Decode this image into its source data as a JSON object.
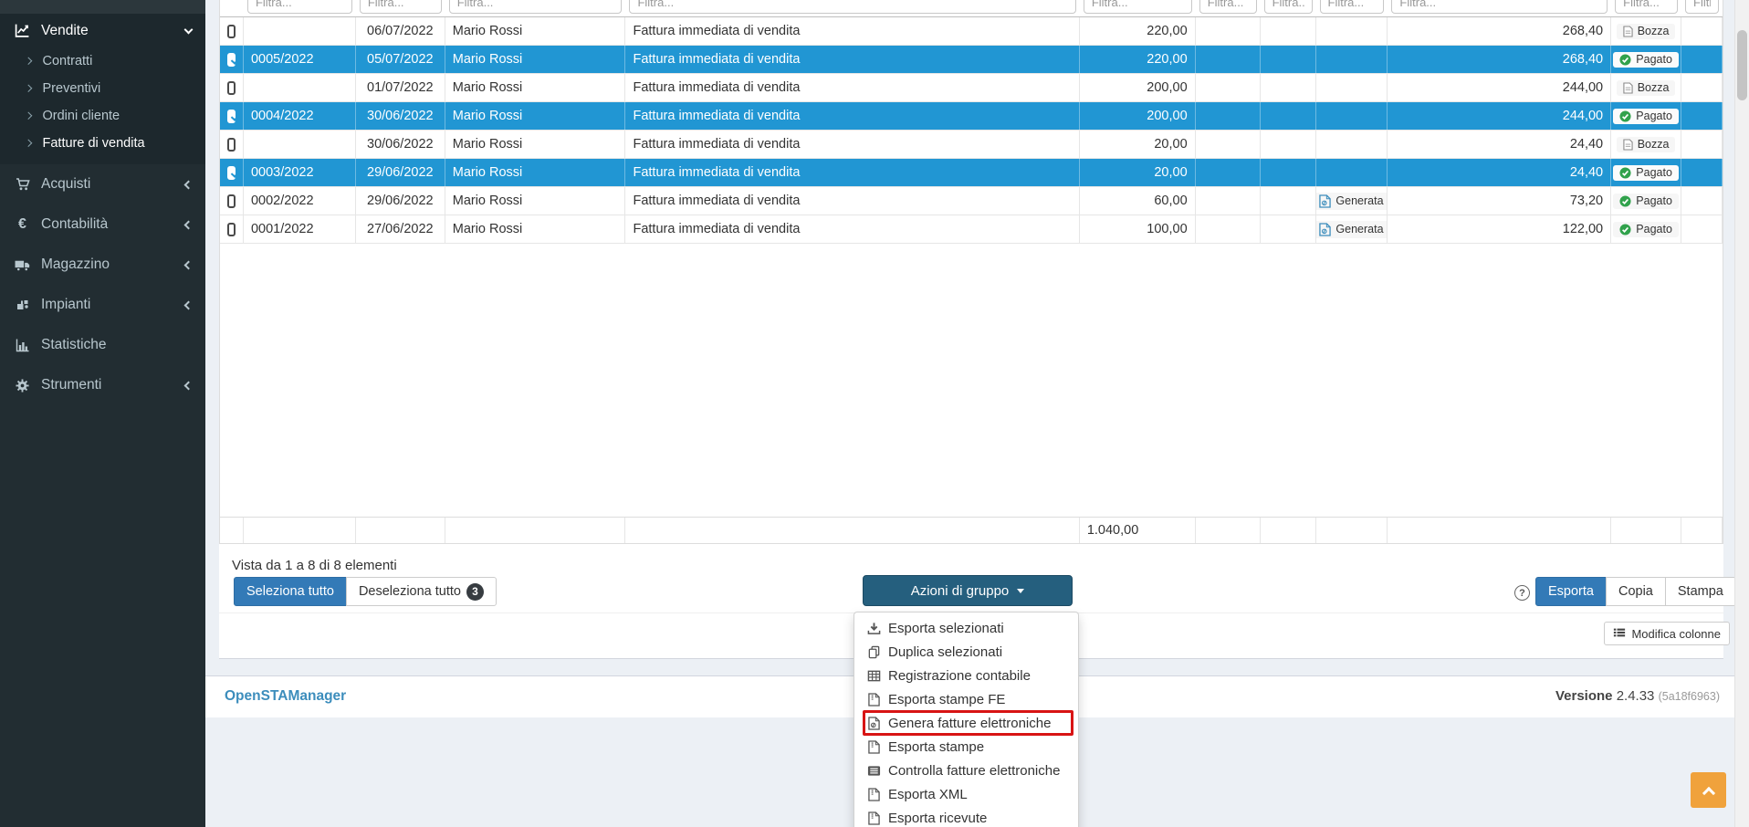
{
  "colors": {
    "selected_row": "#2196d3",
    "primary_button": "#337ab7",
    "group_actions_button": "#255f7e",
    "highlight_box": "#d81414",
    "scroll_top_button": "#f0a23c",
    "brand_link": "#3c8dbc",
    "status_paid_green": "#31a24c",
    "generated_blue": "#3c8dbc"
  },
  "sidebar": {
    "sections": [
      {
        "label": "Vendite",
        "icon": "line-chart-icon",
        "open": true,
        "children": [
          {
            "label": "Contratti",
            "active": false
          },
          {
            "label": "Preventivi",
            "active": false
          },
          {
            "label": "Ordini cliente",
            "active": false
          },
          {
            "label": "Fatture di vendita",
            "active": true
          }
        ]
      },
      {
        "label": "Acquisti",
        "icon": "cart-icon",
        "chevron": "left"
      },
      {
        "label": "Contabilità",
        "icon": "euro-icon",
        "chevron": "left"
      },
      {
        "label": "Magazzino",
        "icon": "truck-icon",
        "chevron": "left"
      },
      {
        "label": "Impianti",
        "icon": "tools-icon",
        "chevron": "left"
      },
      {
        "label": "Statistiche",
        "icon": "bar-chart-icon",
        "chevron": "none"
      },
      {
        "label": "Strumenti",
        "icon": "gear-icon",
        "chevron": "left"
      }
    ]
  },
  "table": {
    "filter_placeholder": "Filtra...",
    "summary": "Vista da 1 a 8 di 8 elementi",
    "footer_total": "1.040,00",
    "rows": [
      {
        "selected": false,
        "number": "",
        "date": "06/07/2022",
        "client": "Mario Rossi",
        "description": "Fattura immediata di vendita",
        "taxable": "220,00",
        "fe": "",
        "total": "268,40",
        "status": "Bozza"
      },
      {
        "selected": true,
        "number": "0005/2022",
        "date": "05/07/2022",
        "client": "Mario Rossi",
        "description": "Fattura immediata di vendita",
        "taxable": "220,00",
        "fe": "",
        "total": "268,40",
        "status": "Pagato"
      },
      {
        "selected": false,
        "number": "",
        "date": "01/07/2022",
        "client": "Mario Rossi",
        "description": "Fattura immediata di vendita",
        "taxable": "200,00",
        "fe": "",
        "total": "244,00",
        "status": "Bozza"
      },
      {
        "selected": true,
        "number": "0004/2022",
        "date": "30/06/2022",
        "client": "Mario Rossi",
        "description": "Fattura immediata di vendita",
        "taxable": "200,00",
        "fe": "",
        "total": "244,00",
        "status": "Pagato"
      },
      {
        "selected": false,
        "number": "",
        "date": "30/06/2022",
        "client": "Mario Rossi",
        "description": "Fattura immediata di vendita",
        "taxable": "20,00",
        "fe": "",
        "total": "24,40",
        "status": "Bozza"
      },
      {
        "selected": true,
        "number": "0003/2022",
        "date": "29/06/2022",
        "client": "Mario Rossi",
        "description": "Fattura immediata di vendita",
        "taxable": "20,00",
        "fe": "",
        "total": "24,40",
        "status": "Pagato"
      },
      {
        "selected": false,
        "number": "0002/2022",
        "date": "29/06/2022",
        "client": "Mario Rossi",
        "description": "Fattura immediata di vendita",
        "taxable": "60,00",
        "fe": "Generata",
        "total": "73,20",
        "status": "Pagato"
      },
      {
        "selected": false,
        "number": "0001/2022",
        "date": "27/06/2022",
        "client": "Mario Rossi",
        "description": "Fattura immediata di vendita",
        "taxable": "100,00",
        "fe": "Generata",
        "total": "122,00",
        "status": "Pagato"
      }
    ]
  },
  "actions": {
    "select_all": "Seleziona tutto",
    "deselect_all": "Deseleziona tutto",
    "deselect_count": "3",
    "group_actions": "Azioni di gruppo",
    "help": "?",
    "modify_columns": "Modifica colonne"
  },
  "export_group": {
    "export": "Esporta",
    "copy": "Copia",
    "print": "Stampa"
  },
  "dropdown": {
    "items": [
      {
        "icon": "download-icon",
        "label": "Esporta selezionati"
      },
      {
        "icon": "copy-icon",
        "label": "Duplica selezionati"
      },
      {
        "icon": "table-grid-icon",
        "label": "Registrazione contabile"
      },
      {
        "icon": "file-archive-icon",
        "label": "Esporta stampe FE"
      },
      {
        "icon": "file-code-icon",
        "label": "Genera fatture elettroniche",
        "highlighted": true
      },
      {
        "icon": "file-archive-icon",
        "label": "Esporta stampe"
      },
      {
        "icon": "list-alt-icon",
        "label": "Controlla fatture elettroniche"
      },
      {
        "icon": "file-archive-icon",
        "label": "Esporta XML"
      },
      {
        "icon": "file-archive-icon",
        "label": "Esporta ricevute"
      }
    ]
  },
  "footer": {
    "brand": "OpenSTAManager",
    "version_label": "Versione",
    "version": "2.4.33",
    "build": "(5a18f6963)"
  }
}
